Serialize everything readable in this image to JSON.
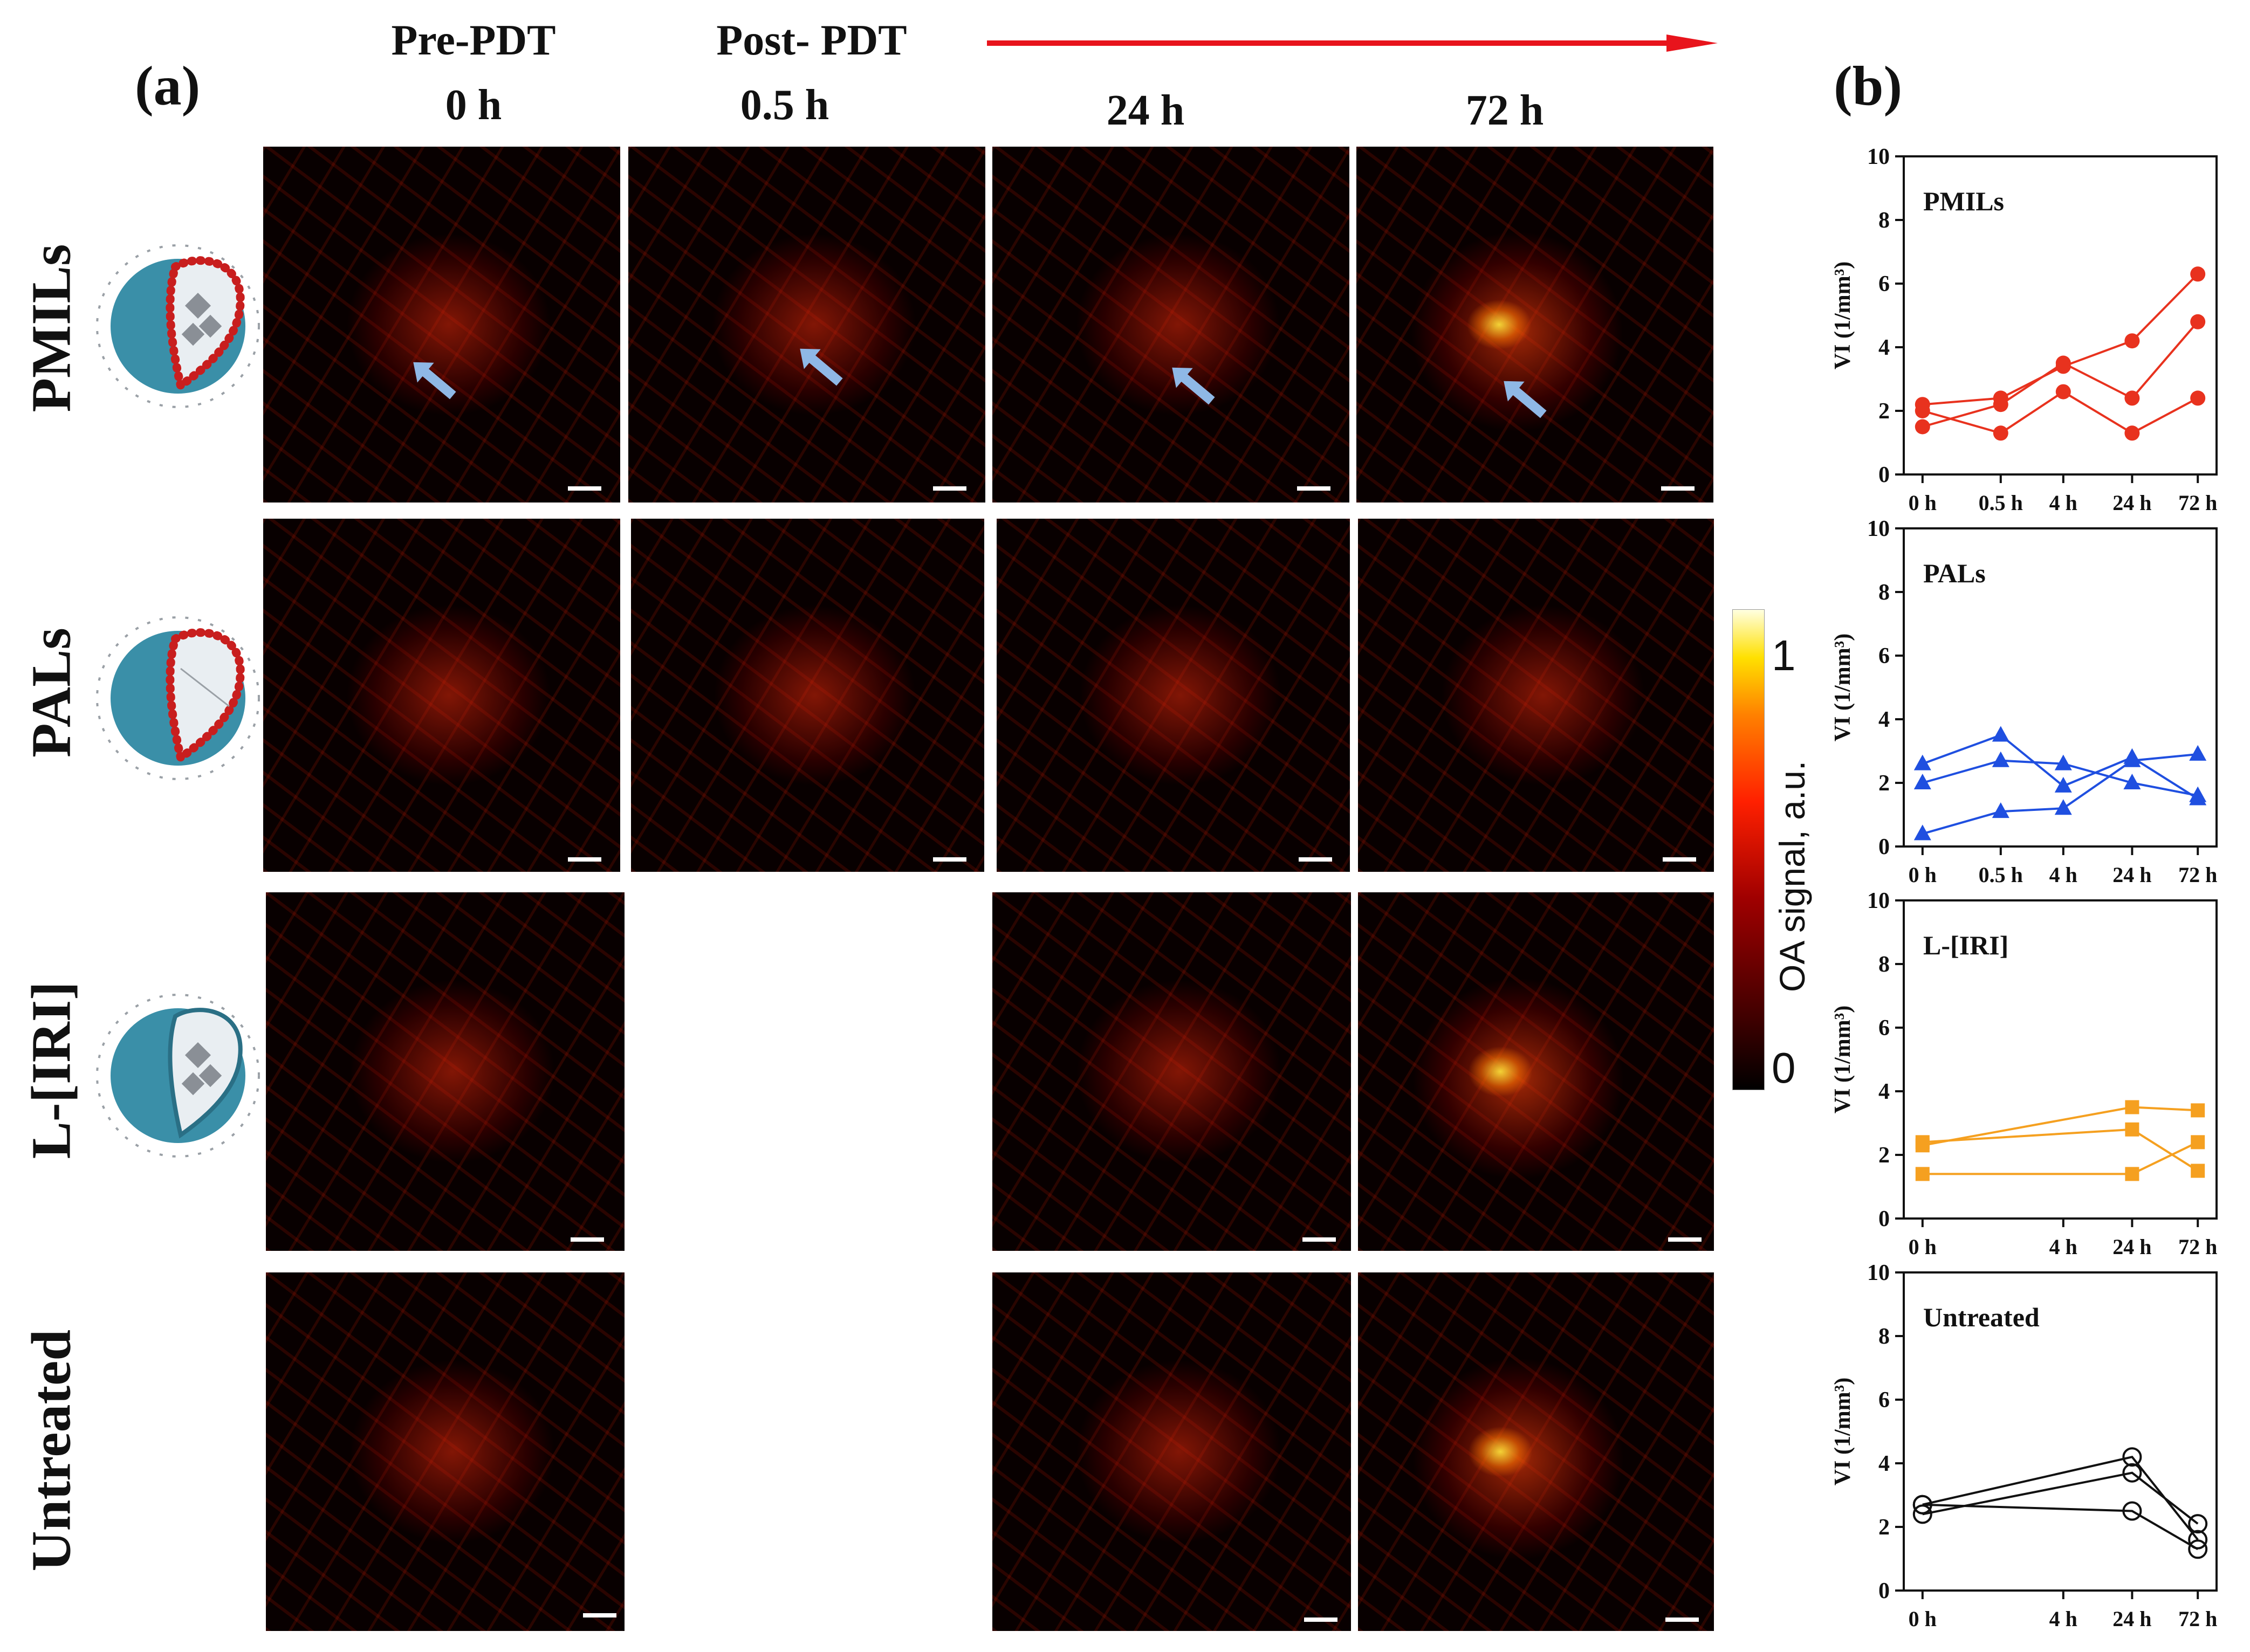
{
  "panel_a_label": "(a)",
  "panel_b_label": "(b)",
  "column_headers": {
    "pre_title": "Pre-PDT",
    "pre_time": "0 h",
    "post_title": "Post- PDT",
    "post_time": "0.5 h",
    "t24": "24 h",
    "t72": "72 h"
  },
  "row_labels": [
    "PMILs",
    "PALs",
    "L-[IRI]",
    "Untreated"
  ],
  "colorbar": {
    "label": "OA signal, a.u.",
    "max_tick": "1",
    "min_tick": "0",
    "low_color": "#000000",
    "high_color": "#ffffe0"
  },
  "colors": {
    "red_arrow": "#e8141c",
    "marker_arrow": "#8fb8e6",
    "liposome_shell": "#3a8fa8",
    "liposome_dots": "#c81e1e"
  },
  "chart_data": [
    {
      "type": "line",
      "title": "PMILs",
      "ylabel": "VI (1/mm³)",
      "ylim": [
        0,
        10
      ],
      "yticks": [
        "0",
        "2",
        "4",
        "6",
        "8",
        "10"
      ],
      "x": [
        "0 h",
        "0.5 h",
        "4 h",
        "24 h",
        "72 h"
      ],
      "color": "#e8321e",
      "marker": "circle-filled",
      "series": [
        {
          "values": [
            2.2,
            2.4,
            3.4,
            4.2,
            6.3
          ]
        },
        {
          "values": [
            1.5,
            2.2,
            3.5,
            2.4,
            4.8
          ]
        },
        {
          "values": [
            2.0,
            1.3,
            2.6,
            1.3,
            2.4
          ]
        }
      ]
    },
    {
      "type": "line",
      "title": "PALs",
      "ylabel": "VI (1/mm³)",
      "ylim": [
        0,
        10
      ],
      "yticks": [
        "0",
        "2",
        "4",
        "6",
        "8",
        "10"
      ],
      "x": [
        "0 h",
        "0.5 h",
        "4 h",
        "24 h",
        "72 h"
      ],
      "color": "#1f4fe0",
      "marker": "triangle-filled",
      "series": [
        {
          "values": [
            2.6,
            3.5,
            1.9,
            2.8,
            1.5
          ]
        },
        {
          "values": [
            2.0,
            2.7,
            2.6,
            2.0,
            1.6
          ]
        },
        {
          "values": [
            0.4,
            1.1,
            1.2,
            2.7,
            2.9
          ]
        }
      ]
    },
    {
      "type": "line",
      "title": "L-[IRI]",
      "ylabel": "VI (1/mm³)",
      "ylim": [
        0,
        10
      ],
      "yticks": [
        "0",
        "2",
        "4",
        "6",
        "8",
        "10"
      ],
      "x": [
        "0 h",
        "4 h",
        "24 h",
        "72 h"
      ],
      "color": "#f5a020",
      "marker": "square-filled",
      "series": [
        {
          "values": [
            2.3,
            null,
            3.5,
            3.4
          ]
        },
        {
          "values": [
            2.4,
            null,
            2.8,
            1.5
          ]
        },
        {
          "values": [
            1.4,
            null,
            1.4,
            2.4
          ]
        }
      ]
    },
    {
      "type": "line",
      "title": "Untreated",
      "ylabel": "VI (1/mm³)",
      "ylim": [
        0,
        10
      ],
      "yticks": [
        "0",
        "2",
        "4",
        "6",
        "8",
        "10"
      ],
      "x": [
        "0 h",
        "4 h",
        "24 h",
        "72 h"
      ],
      "color": "#111111",
      "marker": "circle-open",
      "series": [
        {
          "values": [
            2.7,
            null,
            4.2,
            1.6
          ]
        },
        {
          "values": [
            2.4,
            null,
            3.7,
            2.1
          ]
        },
        {
          "values": [
            2.7,
            null,
            2.5,
            1.3
          ]
        }
      ]
    }
  ]
}
